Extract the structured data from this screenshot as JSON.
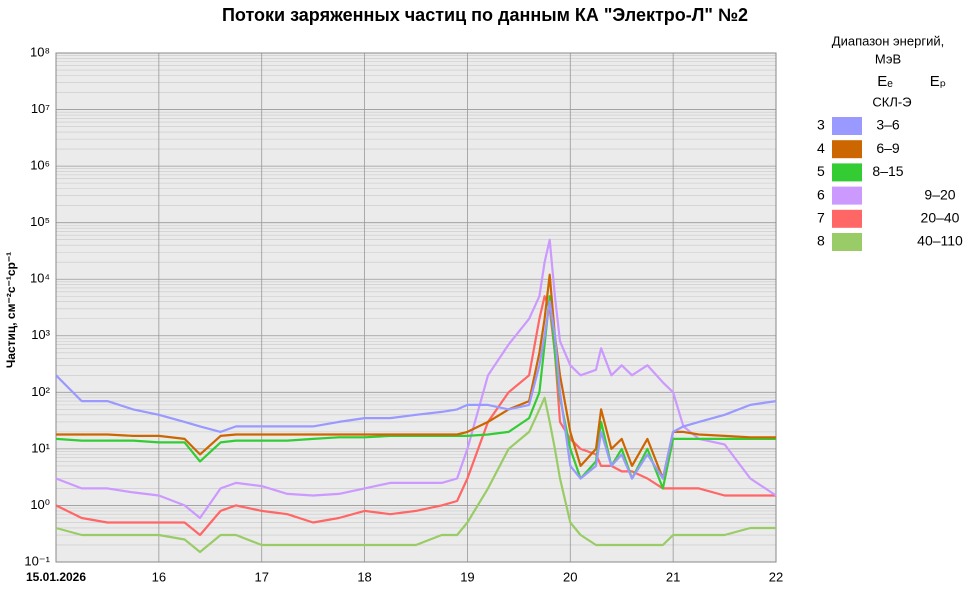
{
  "chart_data": {
    "type": "line",
    "title": "Потоки заряженных частиц по данным КА \"Электро-Л\" №2",
    "y_label": "Частиц, см⁻²с⁻¹ср⁻¹",
    "log_y": true,
    "grid": true,
    "legend_title": [
      "Диапазон энергий,",
      "МэВ"
    ],
    "legend_headers": [
      "Eₑ",
      "Eₚ"
    ],
    "legend_subheader": "СКЛ-Э",
    "xlim": [
      15,
      22
    ],
    "xticks": [
      {
        "value": 15,
        "label": "15.01.2026"
      },
      16,
      17,
      18,
      19,
      20,
      21,
      22
    ],
    "ylim": [
      0.1,
      100000000
    ],
    "yticks": [
      {
        "value": 0.1,
        "label": "10⁻¹"
      },
      {
        "value": 1,
        "label": "10⁰"
      },
      {
        "value": 10,
        "label": "10¹"
      },
      {
        "value": 100,
        "label": "10²"
      },
      {
        "value": 1000,
        "label": "10³"
      },
      {
        "value": 10000,
        "label": "10⁴"
      },
      {
        "value": 100000,
        "label": "10⁵"
      },
      {
        "value": 1000000,
        "label": "10⁶"
      },
      {
        "value": 10000000,
        "label": "10⁷"
      },
      {
        "value": 100000000,
        "label": "10⁸"
      }
    ],
    "x": [
      15,
      15.25,
      15.5,
      15.75,
      16,
      16.25,
      16.4,
      16.6,
      16.75,
      17,
      17.25,
      17.5,
      17.75,
      18,
      18.25,
      18.5,
      18.75,
      18.9,
      19,
      19.2,
      19.4,
      19.6,
      19.7,
      19.75,
      19.8,
      19.85,
      19.9,
      20,
      20.1,
      20.25,
      20.3,
      20.4,
      20.5,
      20.6,
      20.75,
      20.9,
      21,
      21.1,
      21.25,
      21.5,
      21.75,
      22
    ],
    "series": [
      {
        "channel": "3",
        "name": "3–6",
        "column": "e",
        "color": "#9999ff",
        "values": [
          200,
          70,
          70,
          50,
          40,
          30,
          25,
          20,
          25,
          25,
          25,
          25,
          30,
          35,
          35,
          40,
          45,
          50,
          60,
          60,
          50,
          60,
          300,
          1000,
          4000,
          1000,
          100,
          5,
          3,
          5,
          20,
          5,
          8,
          3,
          8,
          3,
          20,
          25,
          30,
          40,
          60,
          70
        ]
      },
      {
        "channel": "4",
        "name": "6–9",
        "column": "e",
        "color": "#cc6600",
        "values": [
          18,
          18,
          18,
          17,
          17,
          15,
          8,
          17,
          18,
          18,
          18,
          18,
          18,
          18,
          18,
          18,
          18,
          18,
          20,
          30,
          50,
          70,
          500,
          2000,
          12000,
          1000,
          200,
          20,
          5,
          10,
          50,
          10,
          15,
          5,
          15,
          3,
          20,
          20,
          18,
          17,
          16,
          16
        ]
      },
      {
        "channel": "5",
        "name": "8–15",
        "column": "e",
        "color": "#33cc33",
        "values": [
          15,
          14,
          14,
          14,
          13,
          13,
          6,
          13,
          14,
          14,
          14,
          15,
          16,
          16,
          17,
          17,
          17,
          17,
          17,
          18,
          20,
          35,
          100,
          700,
          5000,
          500,
          80,
          10,
          3,
          6,
          30,
          5,
          10,
          3,
          10,
          2,
          15,
          15,
          15,
          15,
          15,
          15
        ]
      },
      {
        "channel": "6",
        "name": "9–20",
        "column": "p",
        "color": "#cc99ff",
        "values": [
          3,
          2,
          2,
          1.7,
          1.5,
          1,
          0.6,
          2,
          2.5,
          2.2,
          1.6,
          1.5,
          1.6,
          2,
          2.5,
          2.5,
          2.5,
          3,
          10,
          200,
          700,
          2000,
          5000,
          20000,
          50000,
          5000,
          800,
          300,
          200,
          250,
          600,
          200,
          300,
          200,
          300,
          150,
          100,
          25,
          15,
          12,
          3,
          1.5
        ]
      },
      {
        "channel": "7",
        "name": "20–40",
        "column": "p",
        "color": "#ff6666",
        "values": [
          1,
          0.6,
          0.5,
          0.5,
          0.5,
          0.5,
          0.3,
          0.8,
          1,
          0.8,
          0.7,
          0.5,
          0.6,
          0.8,
          0.7,
          0.8,
          1,
          1.2,
          3,
          30,
          100,
          200,
          2000,
          5000,
          3000,
          500,
          30,
          15,
          10,
          8,
          5,
          5,
          4,
          4,
          3,
          2,
          2,
          2,
          2,
          1.5,
          1.5,
          1.5
        ]
      },
      {
        "channel": "8",
        "name": "40–110",
        "column": "p",
        "color": "#99cc66",
        "values": [
          0.4,
          0.3,
          0.3,
          0.3,
          0.3,
          0.25,
          0.15,
          0.3,
          0.3,
          0.2,
          0.2,
          0.2,
          0.2,
          0.2,
          0.2,
          0.2,
          0.3,
          0.3,
          0.5,
          2,
          10,
          20,
          50,
          80,
          30,
          10,
          3,
          0.5,
          0.3,
          0.2,
          0.2,
          0.2,
          0.2,
          0.2,
          0.2,
          0.2,
          0.3,
          0.3,
          0.3,
          0.3,
          0.4,
          0.4
        ]
      }
    ]
  }
}
